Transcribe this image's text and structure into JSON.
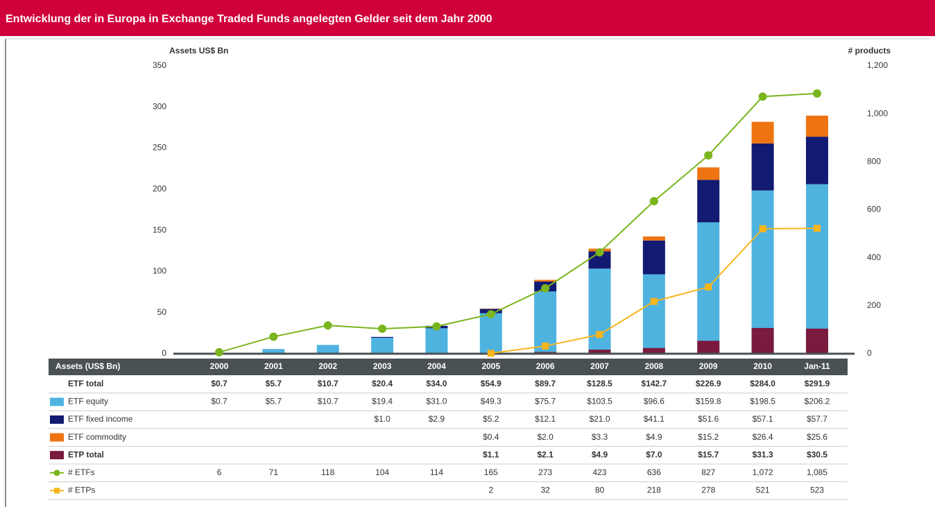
{
  "chart_data": {
    "type": "bar",
    "title": "Entwicklung der in Europa in Exchange Traded Funds angelegten Gelder seit dem Jahr 2000",
    "y_label": "Assets US$ Bn",
    "y2_label": "# products",
    "table_header": "Assets (US$ Bn)",
    "categories": [
      "2000",
      "2001",
      "2002",
      "2003",
      "2004",
      "2005",
      "2006",
      "2007",
      "2008",
      "2009",
      "2010",
      "Jan-11"
    ],
    "ylim": [
      0,
      350
    ],
    "yticks": [
      0,
      50,
      100,
      150,
      200,
      250,
      300,
      350
    ],
    "y2lim": [
      0,
      1200
    ],
    "y2ticks": [
      0,
      200,
      400,
      600,
      800,
      {
        "value": 1000,
        "label": "1,000"
      },
      {
        "value": 1200,
        "label": "1,200"
      }
    ],
    "series": [
      {
        "name": "ETF total",
        "style": "row",
        "bold": true,
        "values": [
          0.7,
          5.7,
          10.7,
          20.4,
          34.0,
          54.9,
          89.7,
          128.5,
          142.7,
          226.9,
          284.0,
          291.9
        ],
        "value_labels": [
          "$0.7",
          "$5.7",
          "$10.7",
          "$20.4",
          "$34.0",
          "$54.9",
          "$89.7",
          "$128.5",
          "$142.7",
          "$226.9",
          "$284.0",
          "$291.9"
        ]
      },
      {
        "name": "ETF equity",
        "style": "stacked-bar",
        "color": "#4fb3e0",
        "values": [
          0.7,
          5.7,
          10.7,
          19.4,
          31.0,
          49.3,
          75.7,
          103.5,
          96.6,
          159.8,
          198.5,
          206.2
        ],
        "value_labels": [
          "$0.7",
          "$5.7",
          "$10.7",
          "$19.4",
          "$31.0",
          "$49.3",
          "$75.7",
          "$103.5",
          "$96.6",
          "$159.8",
          "$198.5",
          "$206.2"
        ]
      },
      {
        "name": "ETF fixed income",
        "style": "stacked-bar",
        "color": "#131a72",
        "values": [
          null,
          null,
          null,
          1.0,
          2.9,
          5.2,
          12.1,
          21.0,
          41.1,
          51.6,
          57.1,
          57.7
        ],
        "value_labels": [
          null,
          null,
          null,
          "$1.0",
          "$2.9",
          "$5.2",
          "$12.1",
          "$21.0",
          "$41.1",
          "$51.6",
          "$57.1",
          "$57.7"
        ]
      },
      {
        "name": "ETF commodity",
        "style": "stacked-bar",
        "color": "#ee7412",
        "values": [
          null,
          null,
          null,
          null,
          null,
          0.4,
          2.0,
          3.3,
          4.9,
          15.2,
          26.4,
          25.6
        ],
        "value_labels": [
          null,
          null,
          null,
          null,
          null,
          "$0.4",
          "$2.0",
          "$3.3",
          "$4.9",
          "$15.2",
          "$26.4",
          "$25.6"
        ]
      },
      {
        "name": "ETP total",
        "style": "bar",
        "color": "#7a1a3e",
        "bold": true,
        "values": [
          null,
          null,
          null,
          null,
          null,
          1.1,
          2.1,
          4.9,
          7.0,
          15.7,
          31.3,
          30.5
        ],
        "value_labels": [
          null,
          null,
          null,
          null,
          null,
          "$1.1",
          "$2.1",
          "$4.9",
          "$7.0",
          "$15.7",
          "$31.3",
          "$30.5"
        ]
      },
      {
        "name": "# ETFs",
        "style": "line",
        "marker": "circle",
        "axis": "y2",
        "color": "#7ab51d",
        "values": [
          6,
          71,
          118,
          104,
          114,
          165,
          273,
          423,
          636,
          827,
          1072,
          1085
        ],
        "value_labels": [
          "6",
          "71",
          "118",
          "104",
          "114",
          "165",
          "273",
          "423",
          "636",
          "827",
          "1,072",
          "1,085"
        ]
      },
      {
        "name": "# ETPs",
        "style": "line",
        "marker": "square",
        "axis": "y2",
        "color": "#f8b51c",
        "values": [
          null,
          null,
          null,
          null,
          null,
          2,
          32,
          80,
          218,
          278,
          521,
          523
        ],
        "value_labels": [
          null,
          null,
          null,
          null,
          null,
          "2",
          "32",
          "80",
          "218",
          "278",
          "521",
          "523"
        ]
      }
    ]
  }
}
